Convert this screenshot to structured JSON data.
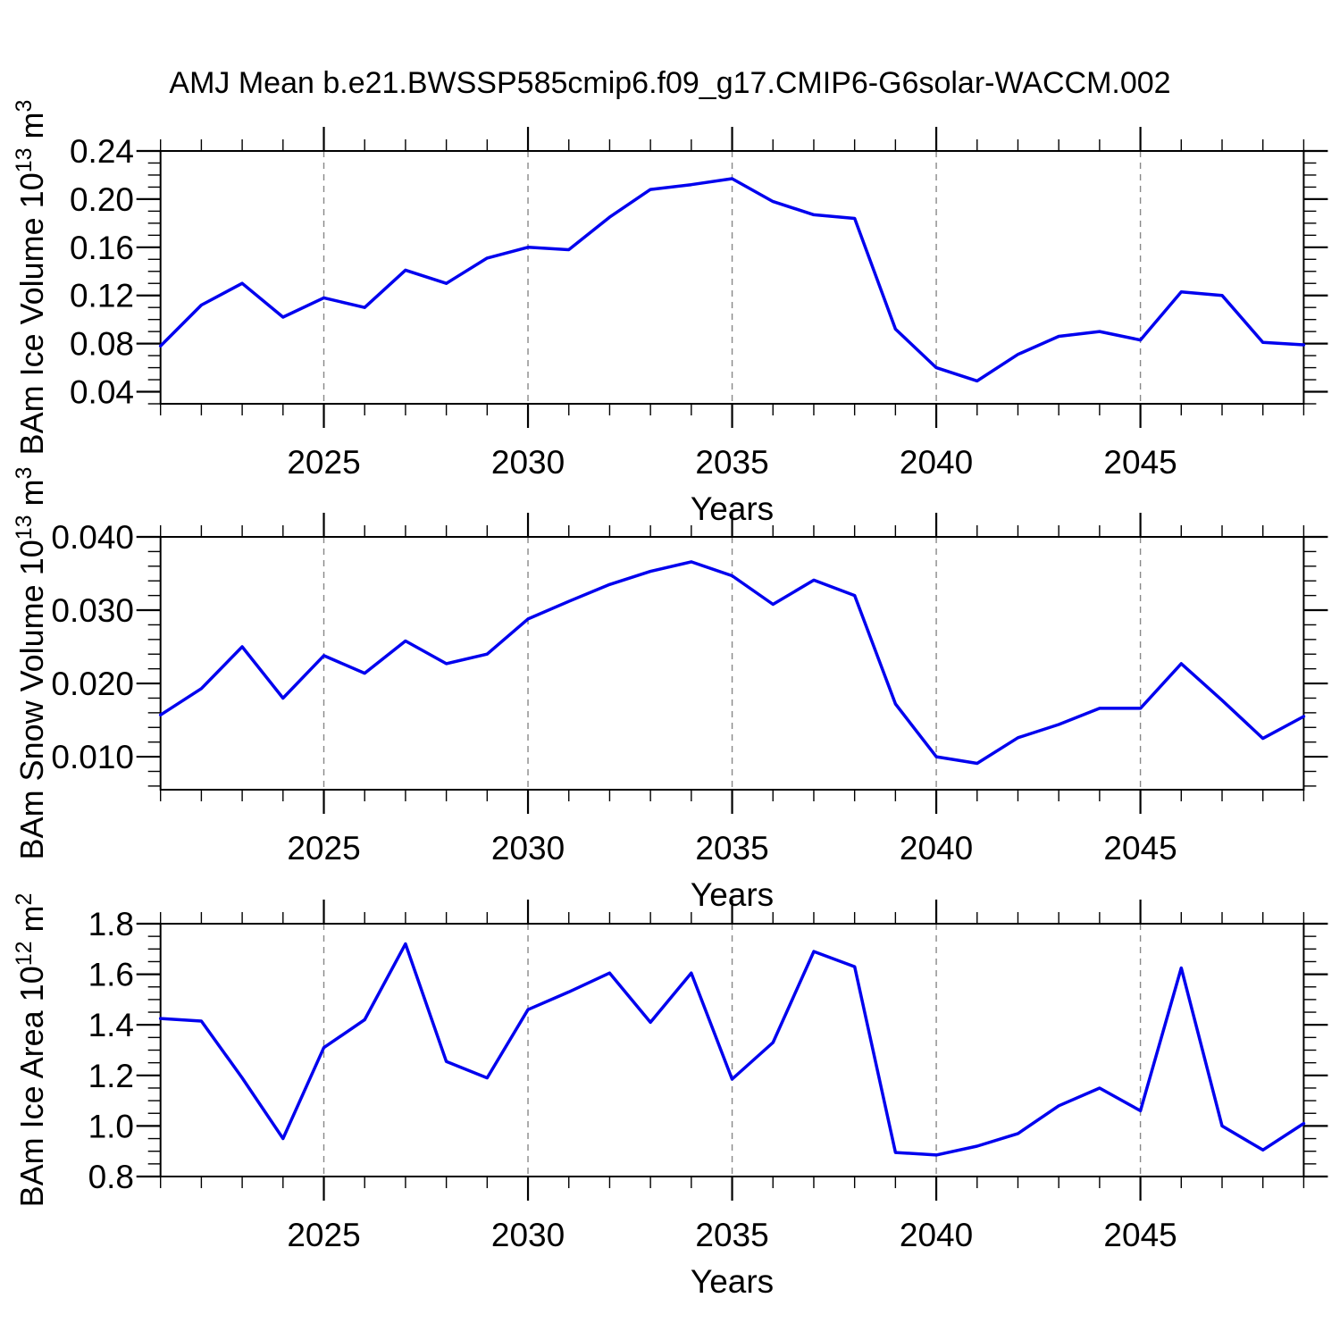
{
  "header": {
    "title": "AMJ Mean b.e21.BWSSP585cmip6.f09_g17.CMIP6-G6solar-WACCM.002"
  },
  "colors": {
    "line": "#0000EE",
    "grid": "#888888",
    "axis": "#000000",
    "background": "#ffffff"
  },
  "chart_data": [
    {
      "id": "ice-volume",
      "type": "line",
      "ylabel_parts": [
        {
          "t": "BAm Ice Volume 10"
        },
        {
          "t": "13",
          "sup": true
        },
        {
          "t": " m"
        },
        {
          "t": "3",
          "sup": true
        }
      ],
      "xlabel": "Years",
      "x": [
        2021,
        2022,
        2023,
        2024,
        2025,
        2026,
        2027,
        2028,
        2029,
        2030,
        2031,
        2032,
        2033,
        2034,
        2035,
        2036,
        2037,
        2038,
        2039,
        2040,
        2041,
        2042,
        2043,
        2044,
        2045,
        2046,
        2047,
        2048,
        2049
      ],
      "values": [
        0.078,
        0.112,
        0.13,
        0.102,
        0.118,
        0.11,
        0.141,
        0.13,
        0.151,
        0.16,
        0.158,
        0.185,
        0.208,
        0.212,
        0.217,
        0.198,
        0.187,
        0.184,
        0.092,
        0.06,
        0.049,
        0.071,
        0.086,
        0.09,
        0.083,
        0.123,
        0.12,
        0.081,
        0.079
      ],
      "xlim": [
        2021,
        2049
      ],
      "ylim": [
        0.03,
        0.24
      ],
      "yticks": {
        "major": [
          0.04,
          0.08,
          0.12,
          0.16,
          0.2,
          0.24
        ],
        "labels": [
          "0.04",
          "0.08",
          "0.12",
          "0.16",
          "0.20",
          "0.24"
        ],
        "minor_step": 0.01
      },
      "xticks": {
        "major": [
          2025,
          2030,
          2035,
          2040,
          2045
        ],
        "labels": [
          "2025",
          "2030",
          "2035",
          "2040",
          "2045"
        ],
        "minor_step": 1
      },
      "grid": true
    },
    {
      "id": "snow-volume",
      "type": "line",
      "ylabel_parts": [
        {
          "t": "BAm Snow Volume 10"
        },
        {
          "t": "13",
          "sup": true
        },
        {
          "t": " m"
        },
        {
          "t": "3",
          "sup": true
        }
      ],
      "xlabel": "Years",
      "x": [
        2021,
        2022,
        2023,
        2024,
        2025,
        2026,
        2027,
        2028,
        2029,
        2030,
        2031,
        2032,
        2033,
        2034,
        2035,
        2036,
        2037,
        2038,
        2039,
        2040,
        2041,
        2042,
        2043,
        2044,
        2045,
        2046,
        2047,
        2048,
        2049
      ],
      "values": [
        0.0157,
        0.0193,
        0.025,
        0.018,
        0.0238,
        0.0214,
        0.0258,
        0.0227,
        0.024,
        0.0288,
        0.0312,
        0.0335,
        0.0353,
        0.0366,
        0.0347,
        0.0308,
        0.0341,
        0.032,
        0.0172,
        0.01,
        0.0091,
        0.0126,
        0.0144,
        0.0166,
        0.0166,
        0.0227,
        0.0177,
        0.0125,
        0.0155
      ],
      "xlim": [
        2021,
        2049
      ],
      "ylim": [
        0.0055,
        0.04
      ],
      "yticks": {
        "major": [
          0.01,
          0.02,
          0.03,
          0.04
        ],
        "labels": [
          "0.010",
          "0.020",
          "0.030",
          "0.040"
        ],
        "minor_step": 0.002
      },
      "xticks": {
        "major": [
          2025,
          2030,
          2035,
          2040,
          2045
        ],
        "labels": [
          "2025",
          "2030",
          "2035",
          "2040",
          "2045"
        ],
        "minor_step": 1
      },
      "grid": true
    },
    {
      "id": "ice-area",
      "type": "line",
      "ylabel_parts": [
        {
          "t": "BAm Ice Area 10"
        },
        {
          "t": "12",
          "sup": true
        },
        {
          "t": " m"
        },
        {
          "t": "2",
          "sup": true
        }
      ],
      "xlabel": "Years",
      "x": [
        2021,
        2022,
        2023,
        2024,
        2025,
        2026,
        2027,
        2028,
        2029,
        2030,
        2031,
        2032,
        2033,
        2034,
        2035,
        2036,
        2037,
        2038,
        2039,
        2040,
        2041,
        2042,
        2043,
        2044,
        2045,
        2046,
        2047,
        2048,
        2049
      ],
      "values": [
        1.425,
        1.415,
        1.19,
        0.95,
        1.31,
        1.42,
        1.72,
        1.255,
        1.19,
        1.46,
        1.53,
        1.605,
        1.41,
        1.605,
        1.185,
        1.33,
        1.69,
        1.63,
        0.895,
        0.885,
        0.92,
        0.97,
        1.08,
        1.15,
        1.06,
        1.625,
        1.0,
        0.905,
        1.01
      ],
      "xlim": [
        2021,
        2049
      ],
      "ylim": [
        0.8,
        1.8
      ],
      "yticks": {
        "major": [
          0.8,
          1.0,
          1.2,
          1.4,
          1.6,
          1.8
        ],
        "labels": [
          "0.8",
          "1.0",
          "1.2",
          "1.4",
          "1.6",
          "1.8"
        ],
        "minor_step": 0.05
      },
      "xticks": {
        "major": [
          2025,
          2030,
          2035,
          2040,
          2045
        ],
        "labels": [
          "2025",
          "2030",
          "2035",
          "2040",
          "2045"
        ],
        "minor_step": 1
      },
      "grid": true
    }
  ]
}
